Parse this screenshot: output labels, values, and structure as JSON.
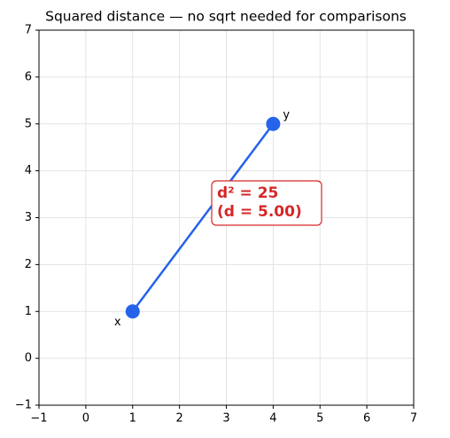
{
  "chart_data": {
    "type": "line",
    "title": "Squared distance — no sqrt needed for comparisons",
    "series": [
      {
        "x": [
          1,
          4
        ],
        "values": [
          1,
          5
        ],
        "point_labels": [
          "x",
          "y"
        ],
        "color": "#2563eb"
      }
    ],
    "xlim": [
      -1,
      7
    ],
    "ylim": [
      -1,
      7
    ],
    "xticks": [
      {
        "value": -1,
        "label": "−1"
      },
      0,
      1,
      2,
      3,
      4,
      5,
      6,
      7
    ],
    "yticks": [
      {
        "value": -1,
        "label": "−1"
      },
      0,
      1,
      2,
      3,
      4,
      5,
      6,
      7
    ],
    "grid": true,
    "annotation": {
      "lines": [
        "d² = 25",
        "(d = 5.00)"
      ],
      "color": "#d62728"
    }
  }
}
